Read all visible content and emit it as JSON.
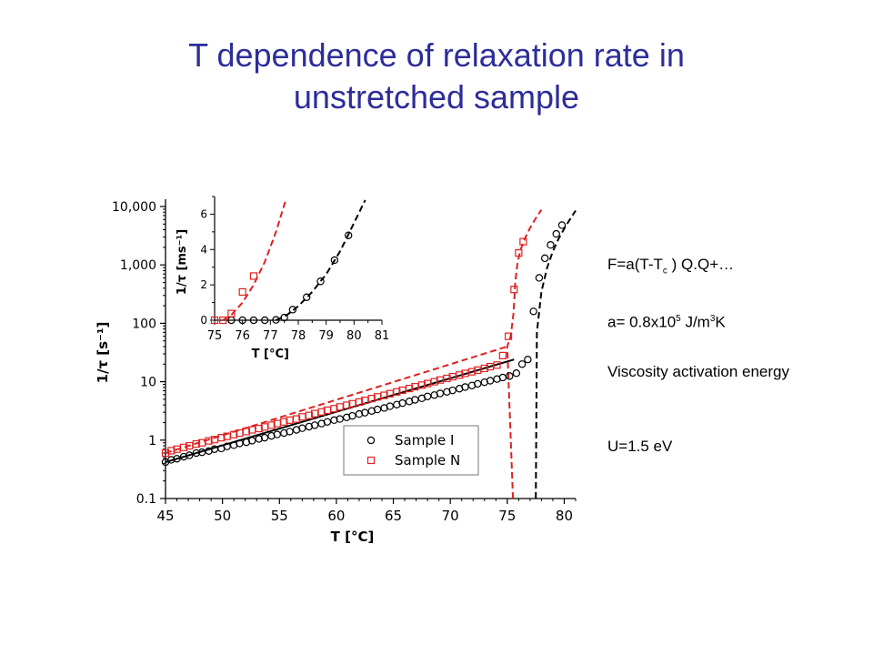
{
  "slide": {
    "title_line1": "T dependence of relaxation rate in",
    "title_line2": "unstretched sample",
    "title_color": "#2d2d9a"
  },
  "notes": {
    "eq_prefix": "F=a(T-T",
    "eq_sub": "c",
    "eq_suffix": " ) Q.Q+…",
    "a_prefix": "a= 0.8x10",
    "a_sup1": "5",
    "a_mid": " J/m",
    "a_sup2": "3",
    "a_suffix": "K",
    "viscosity": "Viscosity activation energy",
    "u": "U=1.5 eV"
  },
  "chart_data": [
    {
      "type": "scatter",
      "panel": "main",
      "xlabel": "T [°C]",
      "ylabel": "1/τ [s⁻¹]",
      "xlim": [
        45,
        81
      ],
      "ylim": [
        0.1,
        10000
      ],
      "yscale": "log",
      "xticks": [
        45,
        50,
        55,
        60,
        65,
        70,
        75,
        80
      ],
      "yticks": [
        0.1,
        1,
        10,
        100,
        1000,
        10000
      ],
      "ytick_labels": [
        "0.1",
        "1",
        "10",
        "100",
        "1,000",
        "10,000"
      ],
      "legend": {
        "placement": "lower-right",
        "entries": [
          "Sample I",
          "Sample N"
        ]
      },
      "series": [
        {
          "name": "Sample I",
          "marker": "circle",
          "color": "#000000",
          "x": [
            45.0,
            45.5,
            46.0,
            46.6,
            47.1,
            47.7,
            48.2,
            48.8,
            49.3,
            49.9,
            50.4,
            51.0,
            51.5,
            52.1,
            52.6,
            53.2,
            53.7,
            54.3,
            54.8,
            55.4,
            55.9,
            56.5,
            57.0,
            57.6,
            58.1,
            58.7,
            59.2,
            59.8,
            60.3,
            60.9,
            61.4,
            62.0,
            62.5,
            63.1,
            63.6,
            64.2,
            64.7,
            65.3,
            65.8,
            66.4,
            66.9,
            67.5,
            68.0,
            68.6,
            69.1,
            69.7,
            70.2,
            70.8,
            71.3,
            71.9,
            72.4,
            73.0,
            73.5,
            74.1,
            74.6,
            75.2,
            75.8,
            76.3,
            76.8,
            77.3,
            77.8,
            78.3,
            78.8,
            79.3,
            79.8
          ],
          "y": [
            0.42,
            0.46,
            0.48,
            0.52,
            0.55,
            0.6,
            0.62,
            0.65,
            0.7,
            0.72,
            0.78,
            0.82,
            0.88,
            0.92,
            0.98,
            1.05,
            1.1,
            1.18,
            1.25,
            1.32,
            1.4,
            1.5,
            1.6,
            1.7,
            1.8,
            1.92,
            2.05,
            2.2,
            2.3,
            2.45,
            2.6,
            2.8,
            2.95,
            3.15,
            3.35,
            3.55,
            3.8,
            4.05,
            4.3,
            4.6,
            4.9,
            5.2,
            5.6,
            5.9,
            6.3,
            6.7,
            7.1,
            7.6,
            8.1,
            8.6,
            9.2,
            9.8,
            10.4,
            11.1,
            11.8,
            12.5,
            14,
            20,
            24,
            160,
            600,
            1300,
            2200,
            3400,
            4800
          ]
        },
        {
          "name": "Sample N",
          "marker": "square",
          "color": "#e02020",
          "x": [
            45.0,
            45.5,
            46.0,
            46.6,
            47.1,
            47.7,
            48.2,
            48.8,
            49.3,
            49.9,
            50.4,
            51.0,
            51.5,
            52.1,
            52.6,
            53.2,
            53.7,
            54.3,
            54.8,
            55.4,
            55.9,
            56.5,
            57.0,
            57.6,
            58.1,
            58.7,
            59.2,
            59.8,
            60.3,
            60.9,
            61.4,
            62.0,
            62.5,
            63.1,
            63.6,
            64.2,
            64.7,
            65.3,
            65.8,
            66.4,
            66.9,
            67.5,
            68.0,
            68.6,
            69.1,
            69.7,
            70.2,
            70.8,
            71.3,
            71.9,
            72.4,
            73.0,
            73.5,
            74.1,
            74.6,
            75.1,
            75.6,
            76.0,
            76.4
          ],
          "y": [
            0.6,
            0.66,
            0.7,
            0.75,
            0.8,
            0.86,
            0.9,
            0.97,
            1.02,
            1.1,
            1.16,
            1.24,
            1.32,
            1.4,
            1.5,
            1.58,
            1.68,
            1.8,
            1.92,
            2.05,
            2.2,
            2.3,
            2.5,
            2.65,
            2.85,
            3.05,
            3.25,
            3.45,
            3.7,
            3.95,
            4.2,
            4.5,
            4.8,
            5.15,
            5.5,
            5.85,
            6.25,
            6.7,
            7.15,
            7.65,
            8.2,
            8.75,
            9.3,
            10.0,
            10.7,
            11.4,
            12.2,
            13.0,
            13.9,
            14.8,
            15.8,
            16.9,
            18.1,
            19.3,
            28,
            60,
            380,
            1600,
            2500
          ]
        }
      ],
      "fits": [
        {
          "color": "#000000",
          "style": "solid",
          "x": [
            45,
            75.6
          ],
          "y": [
            0.42,
            24
          ]
        },
        {
          "color": "#000000",
          "style": "dashed",
          "asymptote_x": 77.5,
          "x": [
            77.6,
            78.0,
            78.5,
            79.0,
            79.5,
            80.0,
            80.5,
            81.0
          ],
          "y": [
            70,
            350,
            900,
            1700,
            2800,
            4200,
            6000,
            8500
          ]
        },
        {
          "color": "#e02020",
          "style": "dashed",
          "asymptote_x": 75.5,
          "x": [
            75.0,
            75.3,
            75.55,
            75.7,
            75.9,
            76.2,
            76.6,
            77.0,
            77.5,
            78.0
          ],
          "y": [
            40,
            60,
            150,
            500,
            1100,
            1900,
            3000,
            4300,
            6300,
            8800
          ]
        },
        {
          "color": "#e02020",
          "style": "dashed",
          "x": [
            45,
            75.0
          ],
          "y": [
            0.6,
            40
          ]
        }
      ]
    },
    {
      "type": "scatter",
      "panel": "inset",
      "xlabel": "T [°C]",
      "ylabel": "1/τ [ms⁻¹]",
      "xlim": [
        75,
        81
      ],
      "ylim": [
        0,
        7
      ],
      "xticks": [
        75,
        76,
        77,
        78,
        79,
        80,
        81
      ],
      "yticks": [
        0,
        2,
        4,
        6
      ],
      "series": [
        {
          "name": "Sample I",
          "marker": "circle",
          "color": "#000000",
          "x": [
            75.6,
            76.0,
            76.4,
            76.8,
            77.2,
            77.5,
            77.8,
            78.3,
            78.8,
            79.3,
            79.8
          ],
          "y": [
            0.0,
            0.0,
            0.0,
            0.0,
            0.02,
            0.15,
            0.6,
            1.3,
            2.2,
            3.4,
            4.8
          ],
          "note": "Sample I points shown in inset are approximate"
        },
        {
          "name": "Sample N",
          "marker": "square",
          "color": "#e02020",
          "x": [
            75.0,
            75.3,
            75.6,
            76.0,
            76.4
          ],
          "y": [
            0.0,
            0.0,
            0.38,
            1.6,
            2.5
          ]
        }
      ],
      "fits": [
        {
          "color": "#e02020",
          "style": "dashed",
          "x": [
            75.3,
            75.6,
            76.0,
            76.4,
            76.8,
            77.2,
            77.55
          ],
          "y": [
            0.0,
            0.3,
            1.0,
            2.0,
            3.3,
            5.0,
            6.8
          ]
        },
        {
          "color": "#000000",
          "style": "dashed",
          "x": [
            77.2,
            77.6,
            78.0,
            78.5,
            79.0,
            79.5,
            80.0,
            80.4
          ],
          "y": [
            0.0,
            0.3,
            0.8,
            1.6,
            2.6,
            3.9,
            5.5,
            6.8
          ]
        }
      ]
    }
  ]
}
